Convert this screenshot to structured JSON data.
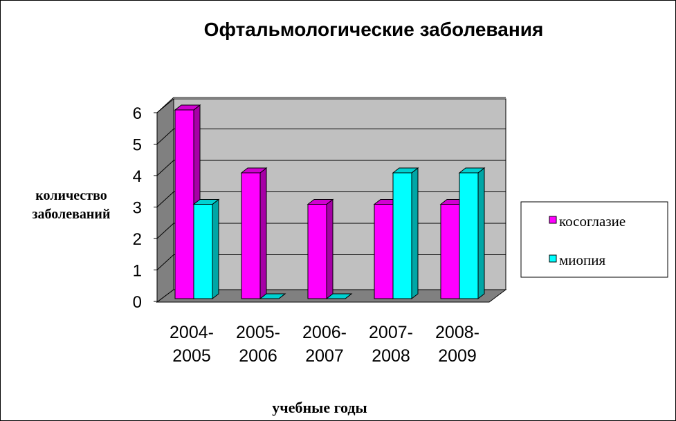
{
  "chart_data": {
    "type": "bar",
    "title": "Офтальмологические заболевания",
    "xlabel": "учебные годы",
    "ylabel": [
      "количество",
      "заболеваний"
    ],
    "categories": [
      [
        "2004-",
        "2005"
      ],
      [
        "2005-",
        "2006"
      ],
      [
        "2006-",
        "2007"
      ],
      [
        "2007-",
        "2008"
      ],
      [
        "2008-",
        "2009"
      ]
    ],
    "series": [
      {
        "name": "косоглазие",
        "values": [
          6,
          4,
          3,
          3,
          3
        ],
        "color": "#ff00ff"
      },
      {
        "name": "миопия",
        "values": [
          3,
          0,
          0,
          4,
          4
        ],
        "color": "#00ffff"
      }
    ],
    "ylim": [
      0,
      6
    ],
    "yticks": [
      "0",
      "1",
      "2",
      "3",
      "4",
      "5",
      "6"
    ],
    "grid": true,
    "legend_position": "right",
    "wall_color": "#c0c0c0",
    "floor_color": "#808080"
  }
}
